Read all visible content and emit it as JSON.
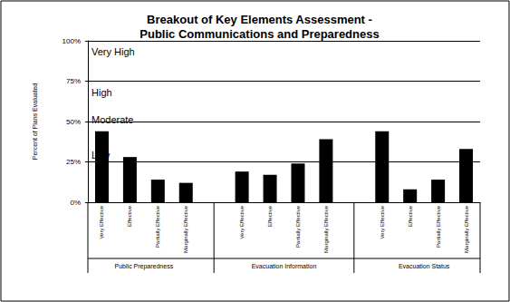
{
  "chart_data": {
    "type": "bar",
    "title": "Breakout of Key Elements Assessment -\nPublic Communications and Preparedness",
    "ylabel": "Percent of Plans Evaluated",
    "categories": [
      "Very Effective",
      "Effective",
      "Partially Effective",
      "Marginally Effective",
      null,
      "Very Effective",
      "Effective",
      "Partially Effective",
      "Marginally Effective",
      null,
      "Very Effective",
      "Effective",
      "Partially Effective",
      "Marginally Effective"
    ],
    "values": [
      44,
      28,
      14,
      12,
      null,
      19,
      17,
      24,
      39,
      null,
      44,
      8,
      14,
      33
    ],
    "groups": [
      "Public Preparedness",
      "Evacuation Information",
      "Evacuation Status"
    ],
    "color": "#000000",
    "ylim": [
      0,
      100
    ],
    "yticks": [
      {
        "value": 0,
        "label": "0%"
      },
      {
        "value": 25,
        "label": "25%"
      },
      {
        "value": 50,
        "label": "50%"
      },
      {
        "value": 75,
        "label": "75%"
      },
      {
        "value": 100,
        "label": "100%"
      }
    ],
    "annotations": [
      {
        "text": "Very High",
        "y": 93
      },
      {
        "text": "High",
        "y": 68
      },
      {
        "text": "Moderate",
        "y": 51
      },
      {
        "text": "Low",
        "y": 29
      }
    ],
    "grid": true
  }
}
